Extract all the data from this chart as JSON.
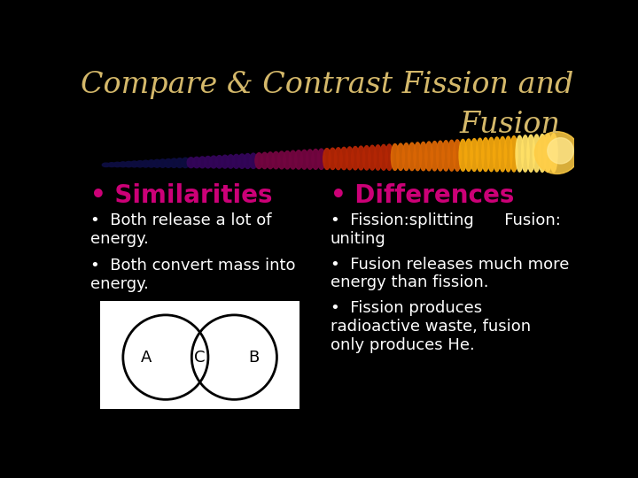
{
  "background_color": "#000000",
  "title_line1": "Compare & Contrast Fission and",
  "title_line2": "Fusion",
  "title_color": "#D4B86A",
  "title_fontsize": 24,
  "similarities_header": "• Similarities",
  "differences_header": "• Differences",
  "header_color": "#CC0077",
  "header_fontsize": 20,
  "similarities_bullets": [
    "Both release a lot of\nenergy.",
    "Both convert mass into\nenergy."
  ],
  "differences_bullets": [
    "Fission:splitting      Fusion:\nuniting",
    "Fusion releases much more\nenergy than fission.",
    "Fission produces\nradioactive waste, fusion\nonly produces He."
  ],
  "bullet_color": "#FFFFFF",
  "bullet_fontsize": 13,
  "venn_bg": "#FFFFFF",
  "venn_circle_color": "#000000"
}
